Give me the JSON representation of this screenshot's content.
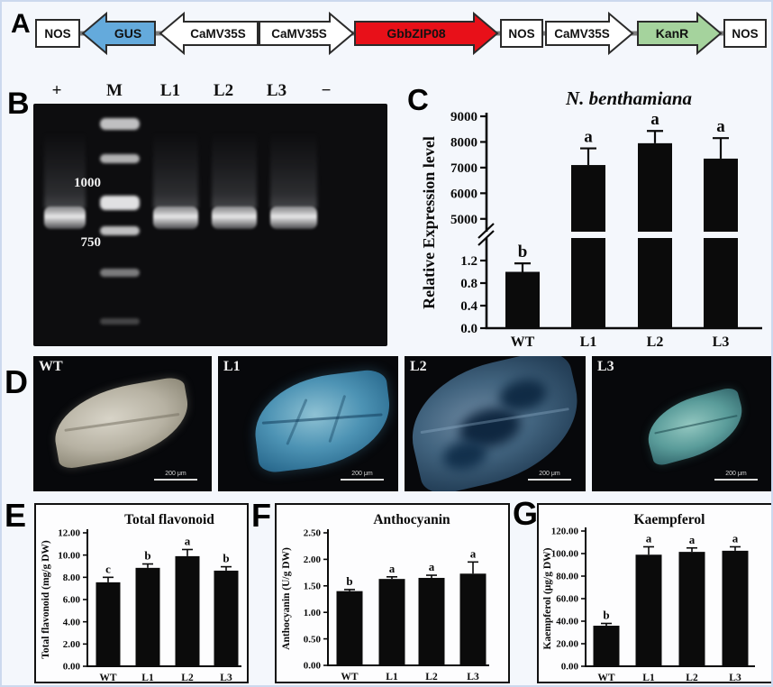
{
  "figure": {
    "panel_labels": {
      "a": "A",
      "b": "B",
      "c": "C",
      "d": "D",
      "e": "E",
      "f": "F",
      "g": "G"
    }
  },
  "construct": {
    "line_color": "#7d7d7d",
    "outline_color": "#2b2b2b",
    "elements": [
      {
        "label": "NOS",
        "shape": "box",
        "color": "#ffffff"
      },
      {
        "label": "GUS",
        "shape": "arrow-left",
        "color": "#64aadc"
      },
      {
        "label": "CaMV35S",
        "shape": "arrow-left",
        "color": "#ffffff"
      },
      {
        "label": "CaMV35S",
        "shape": "arrow-right",
        "color": "#ffffff"
      },
      {
        "label": "GbbZIP08",
        "shape": "arrow-right",
        "color": "#e81019"
      },
      {
        "label": "NOS",
        "shape": "box",
        "color": "#ffffff"
      },
      {
        "label": "CaMV35S",
        "shape": "arrow-right",
        "color": "#ffffff"
      },
      {
        "label": "KanR",
        "shape": "arrow-right",
        "color": "#a5d39d"
      },
      {
        "label": "NOS",
        "shape": "box",
        "color": "#ffffff"
      }
    ]
  },
  "gel": {
    "lane_labels": [
      "+",
      "M",
      "L1",
      "L2",
      "L3",
      "−"
    ],
    "marker_labels": [
      "1000",
      "750"
    ]
  },
  "microscopy": {
    "scale_label": "200 μm",
    "images": [
      {
        "label": "WT"
      },
      {
        "label": "L1"
      },
      {
        "label": "L2"
      },
      {
        "label": "L3"
      }
    ]
  },
  "chart_data": [
    {
      "id": "expression",
      "type": "bar",
      "title": "N. benthamiana",
      "ylabel": "Relative Expression level",
      "categories": [
        "WT",
        "L1",
        "L2",
        "L3"
      ],
      "values": [
        1.0,
        7100,
        7950,
        7350
      ],
      "errors": [
        0.15,
        650,
        480,
        800
      ],
      "sig_letters": [
        "b",
        "a",
        "a",
        "a"
      ],
      "yticks": [
        {
          "v": 0.0,
          "label": "0.0"
        },
        {
          "v": 0.4,
          "label": "0.4"
        },
        {
          "v": 0.8,
          "label": "0.8"
        },
        {
          "v": 1.2,
          "label": "1.2"
        },
        {
          "v": 5000,
          "label": "5000"
        },
        {
          "v": 6000,
          "label": "6000"
        },
        {
          "v": 7000,
          "label": "7000"
        },
        {
          "v": 8000,
          "label": "8000"
        },
        {
          "v": 9000,
          "label": "9000"
        }
      ],
      "axis_break_between": [
        1.6,
        4500
      ],
      "bar_color": "#0b0b0b"
    },
    {
      "id": "flavonoid",
      "type": "bar",
      "title": "Total flavonoid",
      "ylabel": "Total flavonoid (mg/g DW)",
      "categories": [
        "WT",
        "L1",
        "L2",
        "L3"
      ],
      "values": [
        7.55,
        8.85,
        9.9,
        8.6
      ],
      "errors": [
        0.45,
        0.35,
        0.6,
        0.35
      ],
      "sig_letters": [
        "c",
        "b",
        "a",
        "b"
      ],
      "yticks": [
        {
          "v": 0,
          "label": "0.00"
        },
        {
          "v": 2,
          "label": "2.00"
        },
        {
          "v": 4,
          "label": "4.00"
        },
        {
          "v": 6,
          "label": "6.00"
        },
        {
          "v": 8,
          "label": "8.00"
        },
        {
          "v": 10,
          "label": "10.00"
        },
        {
          "v": 12,
          "label": "12.00"
        }
      ],
      "ylim": [
        0,
        12
      ],
      "bar_color": "#0b0b0b"
    },
    {
      "id": "anthocyanin",
      "type": "bar",
      "title": "Anthocyanin",
      "ylabel": "Anthocyanin (U/g DW)",
      "categories": [
        "WT",
        "L1",
        "L2",
        "L3"
      ],
      "values": [
        1.4,
        1.63,
        1.65,
        1.73
      ],
      "errors": [
        0.03,
        0.04,
        0.05,
        0.22
      ],
      "sig_letters": [
        "b",
        "a",
        "a",
        "a"
      ],
      "yticks": [
        {
          "v": 0,
          "label": "0.00"
        },
        {
          "v": 0.5,
          "label": "0.50"
        },
        {
          "v": 1,
          "label": "1.00"
        },
        {
          "v": 1.5,
          "label": "1.50"
        },
        {
          "v": 2,
          "label": "2.00"
        },
        {
          "v": 2.5,
          "label": "2.50"
        }
      ],
      "ylim": [
        0,
        2.5
      ],
      "bar_color": "#0b0b0b"
    },
    {
      "id": "kaempferol",
      "type": "bar",
      "title": "Kaempferol",
      "ylabel": "Kaempferol (μg/g DW)",
      "categories": [
        "WT",
        "L1",
        "L2",
        "L3"
      ],
      "values": [
        36,
        99,
        101.5,
        102.5
      ],
      "errors": [
        2,
        7,
        3.5,
        3.5
      ],
      "sig_letters": [
        "b",
        "a",
        "a",
        "a"
      ],
      "yticks": [
        {
          "v": 0,
          "label": "0.00"
        },
        {
          "v": 20,
          "label": "20.00"
        },
        {
          "v": 40,
          "label": "40.00"
        },
        {
          "v": 60,
          "label": "60.00"
        },
        {
          "v": 80,
          "label": "80.00"
        },
        {
          "v": 100,
          "label": "100.00"
        },
        {
          "v": 120,
          "label": "120.00"
        }
      ],
      "ylim": [
        0,
        120
      ],
      "bar_color": "#0b0b0b"
    }
  ]
}
